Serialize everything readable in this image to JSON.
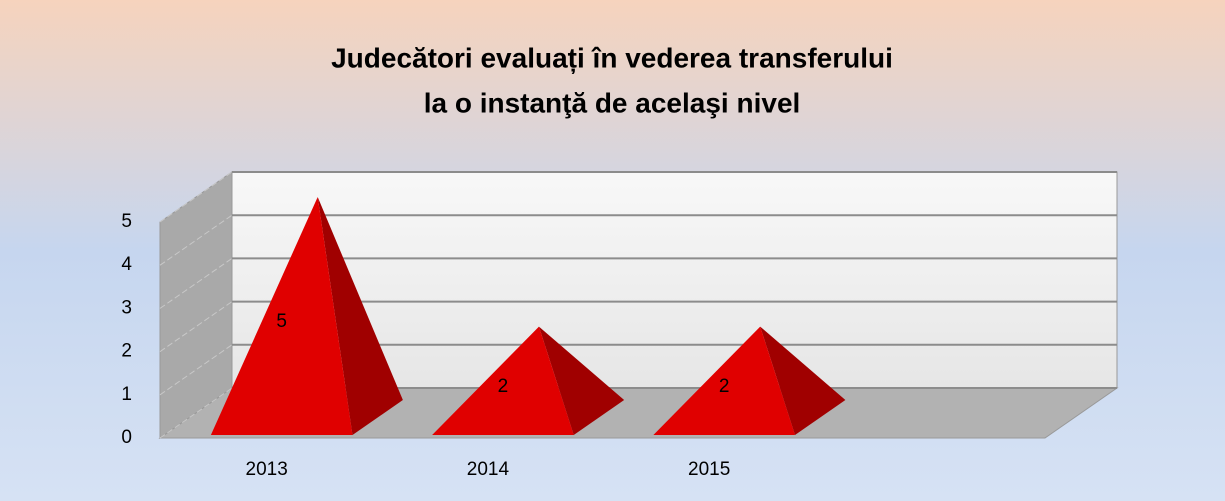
{
  "chart_data": {
    "type": "pyramid3d",
    "title_lines": [
      "Judecători evaluați în vederea transferului",
      "la o instanţă de acelaşi nivel"
    ],
    "categories": [
      "2013",
      "2014",
      "2015",
      null
    ],
    "values": [
      5,
      2,
      2,
      null
    ],
    "color": "#e00000",
    "side_color": "#a00000",
    "ylim": [
      0,
      5
    ],
    "yticks": [
      0,
      1,
      2,
      3,
      4,
      5
    ],
    "grid": true
  }
}
